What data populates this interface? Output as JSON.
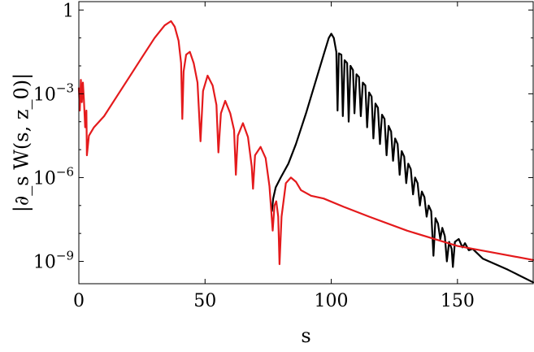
{
  "chart_data": {
    "type": "line",
    "title": "",
    "xlabel": "s",
    "ylabel": "|∂_s W(s, z_0)|",
    "xlim": [
      0,
      180
    ],
    "ylog": true,
    "ylim_log10": [
      -9.8,
      0.3
    ],
    "x_ticks": [
      0,
      50,
      100,
      150
    ],
    "y_ticks": [
      {
        "value_log10": 0,
        "base": "1",
        "exp": ""
      },
      {
        "value_log10": -3,
        "base": "10",
        "exp": "−3"
      },
      {
        "value_log10": -6,
        "base": "10",
        "exp": "−6"
      },
      {
        "value_log10": -9,
        "base": "10",
        "exp": "−9"
      }
    ],
    "grid": false,
    "legend": "none",
    "series": [
      {
        "color": "#000000",
        "points_log10": [
          [
            76.5,
            -7.2
          ],
          [
            77,
            -6.75
          ],
          [
            78,
            -6.35
          ],
          [
            80,
            -6.0
          ],
          [
            83,
            -5.5
          ],
          [
            86,
            -4.8
          ],
          [
            90,
            -3.7
          ],
          [
            94,
            -2.5
          ],
          [
            97,
            -1.6
          ],
          [
            99,
            -1.0
          ],
          [
            100,
            -0.85
          ],
          [
            101,
            -1.0
          ],
          [
            102,
            -1.5
          ],
          [
            102.5,
            -3.6
          ],
          [
            103,
            -1.55
          ],
          [
            104,
            -1.6
          ],
          [
            104.6,
            -3.8
          ],
          [
            105.3,
            -1.8
          ],
          [
            106.3,
            -1.9
          ],
          [
            106.9,
            -4.0
          ],
          [
            107.6,
            -2.0
          ],
          [
            108.6,
            -2.15
          ],
          [
            109.2,
            -3.7
          ],
          [
            110.0,
            -2.3
          ],
          [
            111.0,
            -2.4
          ],
          [
            111.7,
            -3.8
          ],
          [
            112.5,
            -2.6
          ],
          [
            113.5,
            -2.7
          ],
          [
            114.2,
            -4.2
          ],
          [
            115,
            -2.95
          ],
          [
            116,
            -3.1
          ],
          [
            116.7,
            -4.6
          ],
          [
            117.5,
            -3.35
          ],
          [
            118.5,
            -3.5
          ],
          [
            119.3,
            -4.8
          ],
          [
            120.1,
            -3.75
          ],
          [
            121.1,
            -3.9
          ],
          [
            121.9,
            -5.2
          ],
          [
            122.7,
            -4.15
          ],
          [
            123.7,
            -4.35
          ],
          [
            124.5,
            -5.4
          ],
          [
            125.3,
            -4.6
          ],
          [
            126.3,
            -4.8
          ],
          [
            127.1,
            -5.9
          ],
          [
            127.9,
            -5.05
          ],
          [
            128.9,
            -5.25
          ],
          [
            129.7,
            -6.2
          ],
          [
            130.5,
            -5.5
          ],
          [
            131.5,
            -5.7
          ],
          [
            132.4,
            -6.6
          ],
          [
            133.2,
            -6.0
          ],
          [
            134.2,
            -6.2
          ],
          [
            135.1,
            -7.0
          ],
          [
            135.9,
            -6.5
          ],
          [
            136.9,
            -6.7
          ],
          [
            137.8,
            -7.4
          ],
          [
            138.6,
            -7.0
          ],
          [
            139.6,
            -7.2
          ],
          [
            140.5,
            -8.8
          ],
          [
            141.3,
            -7.45
          ],
          [
            142.3,
            -7.65
          ],
          [
            143.2,
            -8.2
          ],
          [
            144.0,
            -7.8
          ],
          [
            145.0,
            -8.1
          ],
          [
            145.8,
            -9.0
          ],
          [
            146.7,
            -8.3
          ],
          [
            147.7,
            -8.55
          ],
          [
            148.2,
            -9.2
          ],
          [
            149.0,
            -8.3
          ],
          [
            150.5,
            -8.2
          ],
          [
            152.0,
            -8.5
          ],
          [
            153.0,
            -8.35
          ],
          [
            154.5,
            -8.6
          ],
          [
            156.0,
            -8.55
          ],
          [
            160,
            -8.9
          ],
          [
            170,
            -9.3
          ],
          [
            180,
            -9.75
          ]
        ]
      },
      {
        "color": "#e41a1c",
        "points_log10": [
          [
            0,
            -2.8
          ],
          [
            0.4,
            -3.6
          ],
          [
            0.8,
            -2.5
          ],
          [
            1.2,
            -3.3
          ],
          [
            1.6,
            -2.6
          ],
          [
            2.0,
            -3.2
          ],
          [
            2.5,
            -4.2
          ],
          [
            3.0,
            -3.6
          ],
          [
            3.2,
            -5.2
          ],
          [
            4,
            -4.5
          ],
          [
            6,
            -4.2
          ],
          [
            10,
            -3.8
          ],
          [
            15,
            -3.1
          ],
          [
            20,
            -2.4
          ],
          [
            25,
            -1.7
          ],
          [
            30,
            -1.0
          ],
          [
            34,
            -0.55
          ],
          [
            36.5,
            -0.4
          ],
          [
            38,
            -0.6
          ],
          [
            39.5,
            -1.1
          ],
          [
            40.5,
            -1.9
          ],
          [
            41,
            -3.9
          ],
          [
            41.5,
            -2.2
          ],
          [
            42.5,
            -1.6
          ],
          [
            44,
            -1.5
          ],
          [
            45.5,
            -1.9
          ],
          [
            47,
            -2.6
          ],
          [
            48.2,
            -4.7
          ],
          [
            49.2,
            -2.9
          ],
          [
            51,
            -2.35
          ],
          [
            53,
            -2.7
          ],
          [
            54.5,
            -3.4
          ],
          [
            55.3,
            -5.1
          ],
          [
            56.3,
            -3.7
          ],
          [
            58,
            -3.25
          ],
          [
            60,
            -3.7
          ],
          [
            61.5,
            -4.3
          ],
          [
            62.2,
            -5.9
          ],
          [
            63,
            -4.5
          ],
          [
            65,
            -4.05
          ],
          [
            67,
            -4.55
          ],
          [
            68.5,
            -5.6
          ],
          [
            69.0,
            -6.4
          ],
          [
            69.8,
            -5.2
          ],
          [
            72,
            -4.9
          ],
          [
            74,
            -5.3
          ],
          [
            75.5,
            -6.3
          ],
          [
            76.8,
            -7.9
          ],
          [
            77.5,
            -7.0
          ],
          [
            78.2,
            -6.85
          ],
          [
            79,
            -7.4
          ],
          [
            79.5,
            -9.1
          ],
          [
            80.3,
            -7.4
          ],
          [
            82,
            -6.2
          ],
          [
            84,
            -6.0
          ],
          [
            86,
            -6.15
          ],
          [
            88,
            -6.45
          ],
          [
            92,
            -6.65
          ],
          [
            97,
            -6.75
          ],
          [
            105,
            -7.05
          ],
          [
            115,
            -7.4
          ],
          [
            130,
            -7.9
          ],
          [
            150,
            -8.45
          ],
          [
            165,
            -8.7
          ],
          [
            180,
            -8.95
          ]
        ]
      }
    ]
  }
}
